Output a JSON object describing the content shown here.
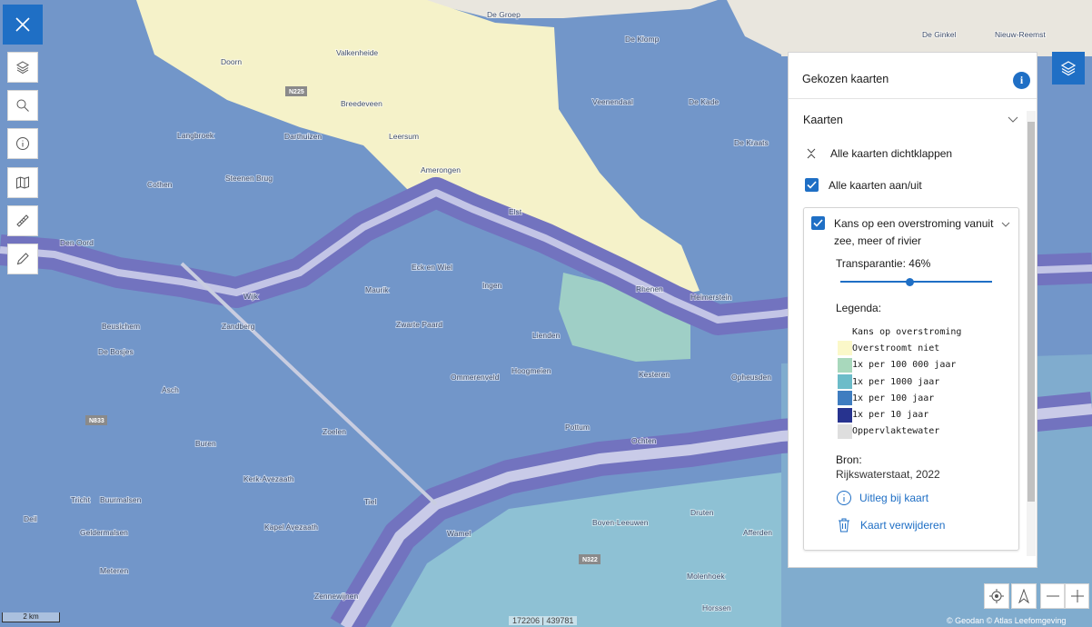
{
  "panel": {
    "title": "Gekozen kaarten",
    "section": "Kaarten",
    "collapse_all": "Alle kaarten dichtklappen",
    "toggle_all": "Alle kaarten aan/uit",
    "layer": {
      "name": "Kans op een overstroming vanuit zee, meer of rivier",
      "transparency_label": "Transparantie:",
      "transparency": {
        "value": 46,
        "label": "46%"
      },
      "legend_heading": "Legenda:",
      "legend": {
        "title": "Kans op overstroming",
        "items": [
          {
            "label": "Overstroomt niet",
            "color": "#fbf8c9"
          },
          {
            "label": "1x per 100 000 jaar",
            "color": "#a8d8bc"
          },
          {
            "label": "1x per 1000 jaar",
            "color": "#6cbcc9"
          },
          {
            "label": "1x per 100 jaar",
            "color": "#3f7dc0"
          },
          {
            "label": "1x per 10 jaar",
            "color": "#27338f"
          },
          {
            "label": "Oppervlaktewater",
            "color": "#dedede"
          }
        ]
      },
      "source_heading": "Bron:",
      "source": "Rijkswaterstaat, 2022",
      "explain": "Uitleg bij kaart",
      "remove": "Kaart verwijderen"
    }
  },
  "map": {
    "places": [
      "Doorn",
      "Valkenheide",
      "Breedeveen",
      "Leersum",
      "Darthuizen",
      "Amerongen",
      "Elst",
      "Veenendaal",
      "De Klomp",
      "De Kade",
      "De Kraats",
      "Steenen Brug",
      "Cothen",
      "Langbroek",
      "Den Oord",
      "Wijk",
      "Zandberg",
      "Beusichem",
      "De Bosjes",
      "Eck en Wiel",
      "Ingen",
      "Maurik",
      "Zwarte Paard",
      "Rhenen",
      "Lienden",
      "Ommerenveld",
      "Hoogmeien",
      "Kesteren",
      "Opheusden",
      "Asch",
      "Buren",
      "Zoelen",
      "Kerk-Avezaath",
      "Tiel",
      "Kapel Avezaath",
      "Geldermalsen",
      "Meteren",
      "Zennewijnen",
      "Pottum",
      "Ochten",
      "Wamel",
      "Boven-Leeuwen",
      "Druten",
      "Afferden",
      "Horssen",
      "Molenhoek",
      "Heimerstein",
      "Tricht",
      "Buurmalsen",
      "Deil",
      "De Ginkel",
      "Nieuw-Reemst",
      "De Groep"
    ],
    "roads": [
      "N225",
      "N833",
      "N322"
    ]
  },
  "footer": {
    "scale": "2 km",
    "coordinates": "172206 | 439781",
    "attribution": "© Geodan © Atlas Leefomgeving"
  }
}
